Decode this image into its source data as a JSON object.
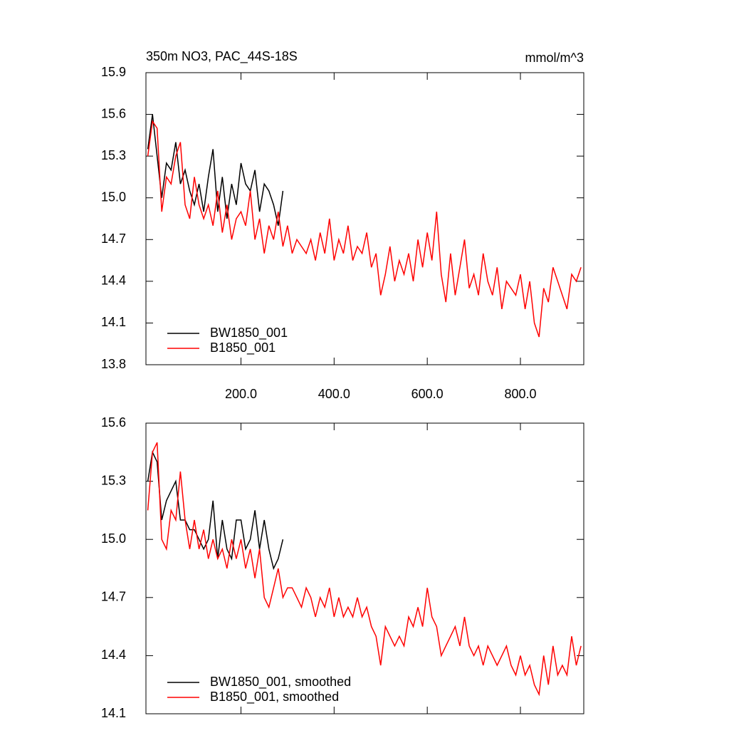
{
  "chart_data": [
    {
      "type": "line",
      "title": "350m NO3, PAC_44S-18S",
      "units": "mmol/m^3",
      "xlim": [
        -4,
        936
      ],
      "ylim": [
        13.8,
        15.9
      ],
      "xticks": [
        {
          "value": 200,
          "label": "200.0"
        },
        {
          "value": 400,
          "label": "400.0"
        },
        {
          "value": 600,
          "label": "600.0"
        },
        {
          "value": 800,
          "label": "800.0"
        }
      ],
      "yticks": [
        13.8,
        14.1,
        14.4,
        14.7,
        {
          "value": 15.0,
          "label": "15.0"
        },
        15.3,
        15.6,
        15.9
      ],
      "series": [
        {
          "name": "BW1850_001",
          "color": "#000000",
          "x": [
            0,
            10,
            20,
            30,
            40,
            50,
            60,
            70,
            80,
            90,
            100,
            110,
            120,
            130,
            140,
            150,
            160,
            170,
            180,
            190,
            200,
            210,
            220,
            230,
            240,
            250,
            260,
            270,
            280,
            290
          ],
          "values": [
            15.35,
            15.6,
            15.3,
            15.0,
            15.25,
            15.2,
            15.4,
            15.1,
            15.2,
            15.05,
            14.95,
            15.1,
            14.9,
            15.15,
            15.35,
            14.9,
            15.15,
            14.85,
            15.1,
            14.95,
            15.25,
            15.1,
            15.05,
            15.2,
            14.9,
            15.1,
            15.05,
            14.95,
            14.8,
            15.05
          ]
        },
        {
          "name": "B1850_001",
          "color": "#ff0000",
          "x": [
            0,
            10,
            20,
            30,
            40,
            50,
            60,
            70,
            80,
            90,
            100,
            110,
            120,
            130,
            140,
            150,
            160,
            170,
            180,
            190,
            200,
            210,
            220,
            230,
            240,
            250,
            260,
            270,
            280,
            290,
            300,
            310,
            320,
            330,
            340,
            350,
            360,
            370,
            380,
            390,
            400,
            410,
            420,
            430,
            440,
            450,
            460,
            470,
            480,
            490,
            500,
            510,
            520,
            530,
            540,
            550,
            560,
            570,
            580,
            590,
            600,
            610,
            620,
            630,
            640,
            650,
            660,
            670,
            680,
            690,
            700,
            710,
            720,
            730,
            740,
            750,
            760,
            770,
            780,
            790,
            800,
            810,
            820,
            830,
            840,
            850,
            860,
            870,
            880,
            890,
            900,
            910,
            920,
            930
          ],
          "values": [
            15.3,
            15.55,
            15.5,
            14.9,
            15.15,
            15.1,
            15.3,
            15.4,
            14.95,
            14.85,
            15.15,
            14.95,
            14.85,
            14.95,
            14.8,
            15.05,
            14.75,
            14.95,
            14.7,
            14.85,
            14.9,
            14.8,
            15.05,
            14.7,
            14.85,
            14.6,
            14.8,
            14.7,
            14.9,
            14.65,
            14.8,
            14.6,
            14.7,
            14.65,
            14.6,
            14.7,
            14.55,
            14.75,
            14.6,
            14.85,
            14.55,
            14.7,
            14.6,
            14.8,
            14.55,
            14.65,
            14.6,
            14.75,
            14.5,
            14.6,
            14.3,
            14.45,
            14.65,
            14.4,
            14.55,
            14.45,
            14.6,
            14.4,
            14.7,
            14.5,
            14.75,
            14.55,
            14.9,
            14.45,
            14.25,
            14.6,
            14.3,
            14.5,
            14.7,
            14.35,
            14.45,
            14.3,
            14.6,
            14.4,
            14.3,
            14.5,
            14.2,
            14.4,
            14.35,
            14.3,
            14.45,
            14.2,
            14.4,
            14.1,
            14.0,
            14.35,
            14.25,
            14.5,
            14.4,
            14.3,
            14.2,
            14.45,
            14.4,
            14.5
          ]
        }
      ]
    },
    {
      "type": "line",
      "xlim": [
        -4,
        936
      ],
      "ylim": [
        14.1,
        15.6
      ],
      "xticks": [
        200,
        400,
        600,
        800
      ],
      "yticks": [
        14.1,
        14.4,
        14.7,
        {
          "value": 15.0,
          "label": "15.0"
        },
        15.3,
        15.6
      ],
      "series": [
        {
          "name": "BW1850_001, smoothed",
          "color": "#000000",
          "x": [
            0,
            10,
            20,
            30,
            40,
            50,
            60,
            70,
            80,
            90,
            100,
            110,
            120,
            130,
            140,
            150,
            160,
            170,
            180,
            190,
            200,
            210,
            220,
            230,
            240,
            250,
            260,
            270,
            280,
            290
          ],
          "values": [
            15.3,
            15.45,
            15.4,
            15.1,
            15.2,
            15.25,
            15.3,
            15.1,
            15.1,
            15.05,
            15.05,
            15.0,
            14.95,
            15.0,
            15.2,
            14.9,
            15.1,
            14.95,
            14.9,
            15.1,
            15.1,
            14.95,
            15.0,
            15.15,
            14.95,
            15.1,
            14.95,
            14.85,
            14.9,
            15.0
          ]
        },
        {
          "name": "B1850_001, smoothed",
          "color": "#ff0000",
          "x": [
            0,
            10,
            20,
            30,
            40,
            50,
            60,
            70,
            80,
            90,
            100,
            110,
            120,
            130,
            140,
            150,
            160,
            170,
            180,
            190,
            200,
            210,
            220,
            230,
            240,
            250,
            260,
            270,
            280,
            290,
            300,
            310,
            320,
            330,
            340,
            350,
            360,
            370,
            380,
            390,
            400,
            410,
            420,
            430,
            440,
            450,
            460,
            470,
            480,
            490,
            500,
            510,
            520,
            530,
            540,
            550,
            560,
            570,
            580,
            590,
            600,
            610,
            620,
            630,
            640,
            650,
            660,
            670,
            680,
            690,
            700,
            710,
            720,
            730,
            740,
            750,
            760,
            770,
            780,
            790,
            800,
            810,
            820,
            830,
            840,
            850,
            860,
            870,
            880,
            890,
            900,
            910,
            920,
            930
          ],
          "values": [
            15.15,
            15.45,
            15.5,
            15.0,
            14.95,
            15.15,
            15.1,
            15.35,
            15.1,
            14.95,
            15.1,
            14.95,
            15.05,
            14.9,
            15.0,
            14.9,
            14.95,
            14.85,
            15.0,
            14.9,
            15.0,
            14.85,
            14.95,
            14.8,
            14.95,
            14.7,
            14.65,
            14.75,
            14.85,
            14.7,
            14.75,
            14.75,
            14.7,
            14.65,
            14.75,
            14.7,
            14.6,
            14.7,
            14.65,
            14.75,
            14.6,
            14.7,
            14.6,
            14.65,
            14.6,
            14.7,
            14.6,
            14.65,
            14.55,
            14.5,
            14.35,
            14.55,
            14.5,
            14.45,
            14.5,
            14.45,
            14.6,
            14.55,
            14.65,
            14.55,
            14.75,
            14.6,
            14.55,
            14.4,
            14.45,
            14.5,
            14.55,
            14.45,
            14.6,
            14.45,
            14.4,
            14.45,
            14.35,
            14.45,
            14.4,
            14.35,
            14.4,
            14.45,
            14.35,
            14.3,
            14.4,
            14.3,
            14.35,
            14.25,
            14.2,
            14.4,
            14.25,
            14.45,
            14.3,
            14.35,
            14.3,
            14.5,
            14.35,
            14.45
          ]
        }
      ]
    }
  ]
}
